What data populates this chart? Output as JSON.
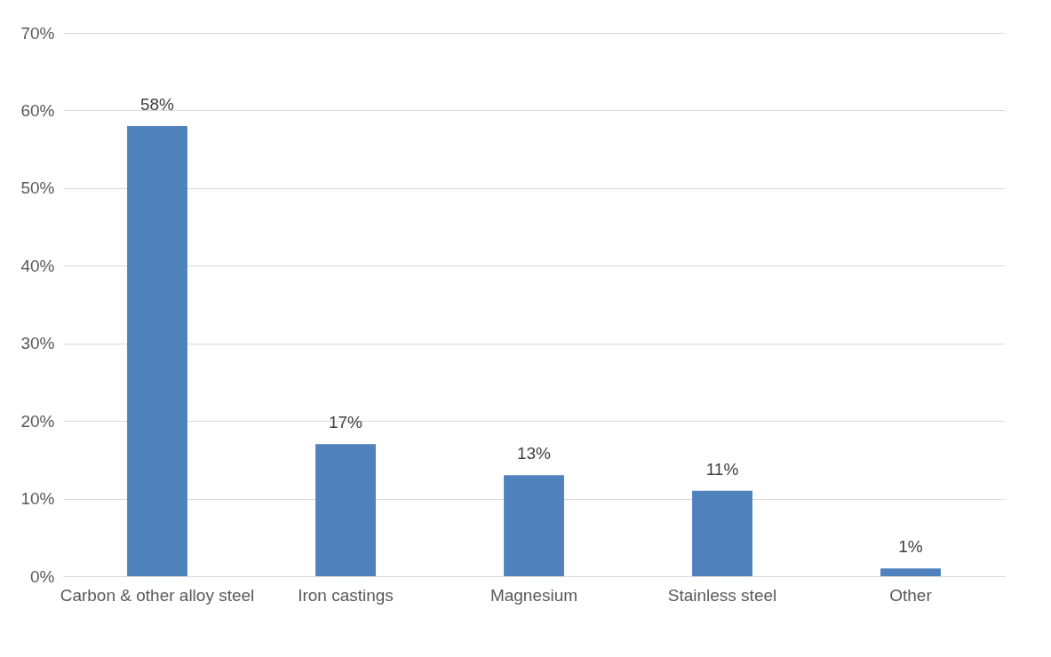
{
  "chart_data": {
    "type": "bar",
    "categories": [
      "Carbon & other alloy steel",
      "Iron castings",
      "Magnesium",
      "Stainless steel",
      "Other"
    ],
    "values": [
      58,
      17,
      13,
      11,
      1
    ],
    "value_labels": [
      "58%",
      "17%",
      "13%",
      "11%",
      "1%"
    ],
    "color": "#4f81bd",
    "ylim": [
      0,
      70
    ],
    "yticks": [
      {
        "value": 0,
        "label": "0%"
      },
      {
        "value": 10,
        "label": "10%"
      },
      {
        "value": 20,
        "label": "20%"
      },
      {
        "value": 30,
        "label": "30%"
      },
      {
        "value": 40,
        "label": "40%"
      },
      {
        "value": 50,
        "label": "50%"
      },
      {
        "value": 60,
        "label": "60%"
      },
      {
        "value": 70,
        "label": "70%"
      }
    ],
    "grid": "y"
  }
}
